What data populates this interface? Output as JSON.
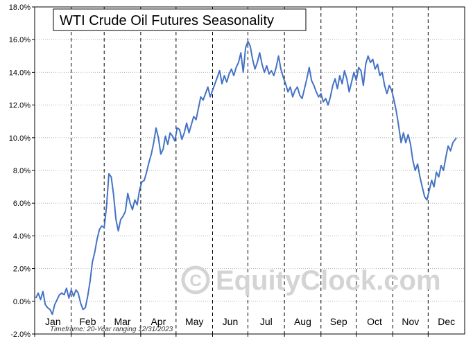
{
  "chart_data": {
    "type": "line",
    "title": "WTI Crude Oil Futures Seasonality",
    "xlabel": "",
    "ylabel": "",
    "ylim": [
      -2,
      18
    ],
    "y_ticks": [
      "18.0%",
      "16.0%",
      "14.0%",
      "12.0%",
      "10.0%",
      "8.0%",
      "6.0%",
      "4.0%",
      "2.0%",
      "0.0%",
      "-2.0%"
    ],
    "y_tick_values": [
      18,
      16,
      14,
      12,
      10,
      8,
      6,
      4,
      2,
      0,
      -2
    ],
    "months": [
      "Jan",
      "Feb",
      "Mar",
      "Apr",
      "May",
      "Jun",
      "Jul",
      "Aug",
      "Sep",
      "Oct",
      "Nov",
      "Dec"
    ],
    "grid": "dotted horizontal, dashed vertical at month boundaries",
    "line_color": "#4472c4",
    "x_unit": "day of year",
    "series": [
      {
        "name": "",
        "points": [
          [
            1,
            0.2
          ],
          [
            3,
            0.5
          ],
          [
            5,
            0.1
          ],
          [
            7,
            0.6
          ],
          [
            9,
            -0.2
          ],
          [
            11,
            -0.4
          ],
          [
            13,
            -0.5
          ],
          [
            15,
            -0.8
          ],
          [
            17,
            -0.2
          ],
          [
            19,
            0.1
          ],
          [
            21,
            0.4
          ],
          [
            23,
            0.5
          ],
          [
            25,
            0.4
          ],
          [
            27,
            0.8
          ],
          [
            29,
            0.2
          ],
          [
            31,
            0.7
          ],
          [
            33,
            0.3
          ],
          [
            35,
            0.7
          ],
          [
            37,
            0.5
          ],
          [
            39,
            -0.1
          ],
          [
            41,
            -0.5
          ],
          [
            43,
            -0.4
          ],
          [
            45,
            0.3
          ],
          [
            47,
            1.2
          ],
          [
            49,
            2.4
          ],
          [
            51,
            3.0
          ],
          [
            53,
            3.8
          ],
          [
            55,
            4.4
          ],
          [
            57,
            4.6
          ],
          [
            59,
            4.5
          ],
          [
            61,
            5.8
          ],
          [
            63,
            7.8
          ],
          [
            65,
            7.6
          ],
          [
            67,
            6.5
          ],
          [
            69,
            5.0
          ],
          [
            71,
            4.3
          ],
          [
            73,
            5.0
          ],
          [
            75,
            5.2
          ],
          [
            77,
            5.5
          ],
          [
            79,
            6.6
          ],
          [
            81,
            6.0
          ],
          [
            83,
            5.6
          ],
          [
            85,
            6.2
          ],
          [
            87,
            5.9
          ],
          [
            89,
            6.8
          ],
          [
            91,
            7.3
          ],
          [
            93,
            7.4
          ],
          [
            95,
            7.9
          ],
          [
            97,
            8.5
          ],
          [
            99,
            9.0
          ],
          [
            101,
            9.7
          ],
          [
            103,
            10.6
          ],
          [
            105,
            10.0
          ],
          [
            107,
            9.0
          ],
          [
            109,
            9.3
          ],
          [
            111,
            10.1
          ],
          [
            113,
            9.6
          ],
          [
            115,
            10.3
          ],
          [
            117,
            10.1
          ],
          [
            119,
            9.8
          ],
          [
            121,
            10.6
          ],
          [
            123,
            10.5
          ],
          [
            125,
            9.9
          ],
          [
            127,
            10.3
          ],
          [
            129,
            10.9
          ],
          [
            131,
            10.3
          ],
          [
            133,
            10.8
          ],
          [
            135,
            11.3
          ],
          [
            137,
            11.1
          ],
          [
            139,
            11.8
          ],
          [
            141,
            12.5
          ],
          [
            143,
            12.3
          ],
          [
            145,
            12.7
          ],
          [
            147,
            13.1
          ],
          [
            149,
            12.5
          ],
          [
            151,
            12.9
          ],
          [
            153,
            13.3
          ],
          [
            155,
            13.7
          ],
          [
            157,
            14.1
          ],
          [
            159,
            13.3
          ],
          [
            161,
            13.8
          ],
          [
            163,
            13.4
          ],
          [
            165,
            13.9
          ],
          [
            167,
            14.2
          ],
          [
            169,
            13.8
          ],
          [
            171,
            14.3
          ],
          [
            173,
            14.6
          ],
          [
            175,
            15.2
          ],
          [
            177,
            14.0
          ],
          [
            179,
            15.5
          ],
          [
            181,
            15.9
          ],
          [
            183,
            15.6
          ],
          [
            185,
            14.8
          ],
          [
            187,
            14.2
          ],
          [
            189,
            14.6
          ],
          [
            191,
            15.2
          ],
          [
            193,
            14.5
          ],
          [
            195,
            14.0
          ],
          [
            197,
            14.4
          ],
          [
            199,
            13.9
          ],
          [
            201,
            14.1
          ],
          [
            203,
            13.8
          ],
          [
            205,
            14.3
          ],
          [
            207,
            15.0
          ],
          [
            209,
            14.2
          ],
          [
            211,
            13.7
          ],
          [
            213,
            13.3
          ],
          [
            215,
            12.8
          ],
          [
            217,
            13.1
          ],
          [
            219,
            12.5
          ],
          [
            221,
            12.9
          ],
          [
            223,
            13.1
          ],
          [
            225,
            12.6
          ],
          [
            227,
            12.4
          ],
          [
            229,
            13.0
          ],
          [
            231,
            13.6
          ],
          [
            233,
            14.3
          ],
          [
            235,
            13.5
          ],
          [
            237,
            13.2
          ],
          [
            239,
            12.8
          ],
          [
            241,
            12.5
          ],
          [
            243,
            12.7
          ],
          [
            245,
            12.2
          ],
          [
            247,
            12.4
          ],
          [
            249,
            12.0
          ],
          [
            251,
            12.5
          ],
          [
            253,
            13.2
          ],
          [
            255,
            13.6
          ],
          [
            257,
            13.0
          ],
          [
            259,
            13.8
          ],
          [
            261,
            13.3
          ],
          [
            263,
            14.1
          ],
          [
            265,
            13.6
          ],
          [
            267,
            12.8
          ],
          [
            269,
            13.4
          ],
          [
            271,
            14.0
          ],
          [
            273,
            13.5
          ],
          [
            275,
            14.3
          ],
          [
            277,
            14.1
          ],
          [
            279,
            13.2
          ],
          [
            281,
            14.5
          ],
          [
            283,
            15.0
          ],
          [
            285,
            14.6
          ],
          [
            287,
            14.8
          ],
          [
            289,
            14.2
          ],
          [
            291,
            14.5
          ],
          [
            293,
            13.8
          ],
          [
            295,
            14.0
          ],
          [
            297,
            13.2
          ],
          [
            299,
            12.7
          ],
          [
            301,
            13.2
          ],
          [
            303,
            12.9
          ],
          [
            305,
            12.3
          ],
          [
            307,
            11.6
          ],
          [
            309,
            10.7
          ],
          [
            311,
            9.7
          ],
          [
            313,
            10.3
          ],
          [
            315,
            9.7
          ],
          [
            317,
            10.2
          ],
          [
            319,
            9.6
          ],
          [
            321,
            8.6
          ],
          [
            323,
            8.0
          ],
          [
            325,
            8.4
          ],
          [
            327,
            7.6
          ],
          [
            329,
            7.0
          ],
          [
            331,
            6.4
          ],
          [
            333,
            6.2
          ],
          [
            335,
            6.8
          ],
          [
            337,
            7.4
          ],
          [
            339,
            7.0
          ],
          [
            341,
            7.9
          ],
          [
            343,
            7.6
          ],
          [
            345,
            8.3
          ],
          [
            347,
            8.0
          ],
          [
            349,
            8.8
          ],
          [
            351,
            9.5
          ],
          [
            353,
            9.2
          ],
          [
            355,
            9.7
          ],
          [
            358,
            10.0
          ]
        ]
      }
    ]
  },
  "watermark": "EquityClock.com",
  "footnote": "Timeframe: 20-Year ranging 12/31/2023"
}
